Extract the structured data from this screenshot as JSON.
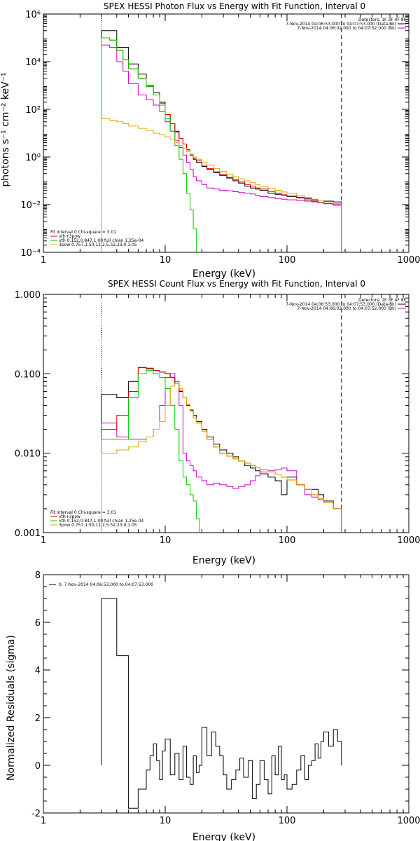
{
  "chart_data": [
    {
      "type": "line",
      "title": "SPEX HESSI Photon Flux vs Energy with Fit Function, Interval 0",
      "xlabel": "Energy (keV)",
      "ylabel": "photons s⁻¹ cm⁻² keV⁻¹",
      "xscale": "log",
      "yscale": "log",
      "xlim": [
        1,
        1000
      ],
      "ylim": [
        0.0001,
        1000000
      ],
      "x_ticks": [
        "1",
        "10",
        "100",
        "1000"
      ],
      "y_ticks": [
        "10⁻⁴",
        "10⁻²",
        "10⁰",
        "10²",
        "10⁴",
        "10⁶"
      ],
      "fit_range_keV": [
        3,
        280
      ],
      "legend_top": {
        "header": "Detectors: 1F 3F 4F 8F",
        "entries": [
          {
            "label": "7-Nov-2014 04:06:53.000 to 04:07:53.000 (Data-Bk)",
            "color": "#000000"
          },
          {
            "label": "7-Nov-2014 04:06:02.000 to 04:07:52.000 (Bk)",
            "color": "#cc00cc"
          }
        ]
      },
      "legend_bottom": {
        "header": "Fit Interval 0   Chi-square = 3.01",
        "entries": [
          {
            "label": "vth+3pow",
            "color": "#dd0000"
          },
          {
            "label": "vth 0.152,0.847,1.00  full chian 1.25e-04",
            "color": "#00cc00"
          },
          {
            "label": "3pow 0.757,1.50,11.2,5.52,23.0,1.05",
            "color": "#ddaa00"
          }
        ]
      },
      "series": [
        {
          "name": "7-Nov-2014 04:06:53.000 to 04:07:53.000 (Data-Bk)",
          "color": "#000000",
          "x": [
            3,
            3.5,
            4,
            4.5,
            5,
            6,
            7,
            8,
            9,
            10,
            11,
            12,
            13,
            14,
            15,
            16,
            17,
            18,
            20,
            22,
            25,
            28,
            32,
            36,
            40,
            45,
            50,
            55,
            60,
            70,
            80,
            90,
            100,
            120,
            140,
            160,
            180,
            200,
            240,
            280
          ],
          "y": [
            200000,
            200000,
            40000,
            40000,
            8000,
            3000,
            1000,
            500,
            200,
            60,
            25,
            12,
            6,
            3.5,
            2,
            1.2,
            0.8,
            0.6,
            0.4,
            0.3,
            0.22,
            0.17,
            0.13,
            0.1,
            0.08,
            0.06,
            0.05,
            0.045,
            0.04,
            0.03,
            0.027,
            0.025,
            0.022,
            0.02,
            0.018,
            0.016,
            0.015,
            0.014,
            0.013,
            0.012
          ]
        },
        {
          "name": "7-Nov-2014 04:06:02.000 to 04:07:52.000 (Bk)",
          "color": "#cc00cc",
          "x": [
            3,
            3.5,
            4,
            4.5,
            5,
            6,
            7,
            8,
            9,
            10,
            11,
            12,
            13,
            14,
            15,
            16,
            17,
            18,
            20,
            22,
            25,
            28,
            32,
            36,
            40,
            45,
            50,
            55,
            60,
            70,
            80,
            90,
            100,
            120,
            140,
            160,
            180,
            200,
            240,
            280
          ],
          "y": [
            50000,
            40000,
            10000,
            4000,
            1200,
            400,
            250,
            150,
            80,
            30,
            12,
            5,
            2.5,
            1.2,
            0.6,
            0.3,
            0.15,
            0.1,
            0.07,
            0.05,
            0.045,
            0.04,
            0.038,
            0.035,
            0.032,
            0.03,
            0.028,
            0.025,
            0.022,
            0.02,
            0.018,
            0.017,
            0.016,
            0.015,
            0.014,
            0.013,
            0.012,
            0.011,
            0.01,
            0.009
          ]
        },
        {
          "name": "vth+3pow",
          "color": "#dd0000",
          "x": [
            3,
            3.5,
            4,
            4.5,
            5,
            6,
            7,
            8,
            9,
            10,
            11,
            12,
            13,
            14,
            15,
            16,
            17,
            18,
            20,
            22,
            25,
            28,
            32,
            36,
            40,
            45,
            50,
            55,
            60,
            70,
            80,
            90,
            100,
            120,
            140,
            160,
            180,
            200,
            240,
            280
          ],
          "y": [
            100000,
            80000,
            30000,
            12000,
            5000,
            2000,
            900,
            400,
            180,
            60,
            25,
            11,
            6,
            3.5,
            2,
            1.3,
            0.9,
            0.7,
            0.45,
            0.33,
            0.24,
            0.18,
            0.14,
            0.11,
            0.09,
            0.07,
            0.06,
            0.05,
            0.045,
            0.036,
            0.03,
            0.026,
            0.023,
            0.019,
            0.016,
            0.014,
            0.012,
            0.011,
            0.0095,
            0.0085
          ]
        },
        {
          "name": "vth 0.152,0.847,1.00  full chian 1.25e-04",
          "color": "#00cc00",
          "x": [
            3,
            3.5,
            4,
            4.5,
            5,
            6,
            7,
            8,
            9,
            10,
            11,
            12,
            13,
            14,
            15,
            16,
            17,
            18
          ],
          "y": [
            100000,
            80000,
            30000,
            12000,
            5000,
            2000,
            900,
            400,
            150,
            40,
            12,
            3,
            0.8,
            0.2,
            0.03,
            0.006,
            0.001,
            0.0001
          ]
        },
        {
          "name": "3pow 0.757,1.50,11.2,5.52,23.0,1.05",
          "color": "#ddaa00",
          "x": [
            3,
            3.5,
            4,
            4.5,
            5,
            6,
            7,
            8,
            9,
            10,
            11,
            12,
            13,
            14,
            15,
            16,
            17,
            18,
            20,
            22,
            25,
            28,
            32,
            36,
            40,
            45,
            50,
            55,
            60,
            70,
            80,
            90,
            100,
            120,
            140,
            160,
            180,
            200,
            240,
            280
          ],
          "y": [
            40,
            35,
            30,
            25,
            20,
            16,
            13,
            10,
            8.5,
            7,
            5.5,
            4,
            3,
            2.3,
            1.7,
            1.3,
            1,
            0.8,
            0.6,
            0.45,
            0.33,
            0.25,
            0.19,
            0.15,
            0.12,
            0.1,
            0.085,
            0.07,
            0.06,
            0.048,
            0.04,
            0.034,
            0.03,
            0.024,
            0.02,
            0.017,
            0.015,
            0.013,
            0.011,
            0.01
          ]
        }
      ]
    },
    {
      "type": "line",
      "title": "SPEX HESSI Count Flux vs Energy with Fit Function, Interval 0",
      "xlabel": "Energy (keV)",
      "ylabel": "",
      "xscale": "log",
      "yscale": "log",
      "xlim": [
        1,
        1000
      ],
      "ylim": [
        0.001,
        1.0
      ],
      "x_ticks": [
        "1",
        "10",
        "100",
        "1000"
      ],
      "y_ticks": [
        "0.001",
        "0.010",
        "0.100",
        "1.000"
      ],
      "fit_range_keV": [
        3,
        280
      ],
      "legend_top": {
        "header": "Detectors: 1F 3F 4F 8F",
        "entries": [
          {
            "label": "7-Nov-2014 04:06:53.000 to 04:07:53.000 (Data-Bk)",
            "color": "#000000"
          },
          {
            "label": "7-Nov-2014 04:06:02.000 to 04:07:52.000 (Bk)",
            "color": "#cc00cc"
          }
        ]
      },
      "legend_bottom": {
        "header": "Fit Interval 0   Chi-square = 3.01",
        "entries": [
          {
            "label": "vth+3pow",
            "color": "#dd0000"
          },
          {
            "label": "vth 0.152,0.847,1.00  full chian 1.25e-04",
            "color": "#00cc00"
          },
          {
            "label": "3pow 0.757,1.50,11.2,5.52,23.0,1.05",
            "color": "#ddaa00"
          }
        ]
      },
      "series": [
        {
          "name": "7-Nov-2014 04:06:53.000 to 04:07:53.000 (Data-Bk)",
          "color": "#000000",
          "x": [
            3,
            4,
            5,
            6,
            7,
            8,
            9,
            10,
            11,
            12,
            13,
            14,
            15,
            16,
            17,
            18,
            20,
            22,
            25,
            28,
            32,
            36,
            40,
            45,
            50,
            55,
            60,
            70,
            80,
            90,
            100,
            120,
            140,
            160,
            180,
            200,
            240,
            280
          ],
          "y": [
            0.055,
            0.05,
            0.08,
            0.12,
            0.115,
            0.11,
            0.105,
            0.1,
            0.09,
            0.075,
            0.06,
            0.05,
            0.04,
            0.035,
            0.03,
            0.025,
            0.02,
            0.016,
            0.013,
            0.011,
            0.01,
            0.009,
            0.008,
            0.007,
            0.0065,
            0.006,
            0.0055,
            0.005,
            0.0045,
            0.003,
            0.005,
            0.004,
            0.0035,
            0.0035,
            0.003,
            0.0025,
            0.002,
            0.0015
          ]
        },
        {
          "name": "7-Nov-2014 04:06:02.000 to 04:07:52.000 (Bk)",
          "color": "#cc00cc",
          "x": [
            3,
            4,
            5,
            6,
            7,
            8,
            9,
            10,
            11,
            12,
            13,
            14,
            15,
            16,
            17,
            18,
            20,
            22,
            25,
            28,
            32,
            36,
            40,
            45,
            50,
            55,
            60,
            70,
            80,
            90,
            100,
            120,
            140,
            160,
            180,
            200,
            240,
            280
          ],
          "y": [
            0.024,
            0.016,
            0.015,
            0.015,
            0.016,
            0.02,
            0.04,
            0.09,
            0.1,
            0.08,
            0.04,
            0.01,
            0.008,
            0.007,
            0.006,
            0.005,
            0.0045,
            0.004,
            0.0042,
            0.004,
            0.0038,
            0.0036,
            0.0038,
            0.004,
            0.0045,
            0.0052,
            0.0058,
            0.006,
            0.0062,
            0.0065,
            0.006,
            0.004,
            0.003,
            0.0028,
            0.0026,
            0.0024,
            0.002,
            0.0015
          ]
        },
        {
          "name": "vth+3pow",
          "color": "#dd0000",
          "x": [
            3,
            4,
            5,
            6,
            7,
            8,
            9,
            10,
            11,
            12,
            13,
            14,
            15,
            16,
            17,
            18,
            20,
            22,
            25,
            28,
            32,
            36,
            40,
            45,
            50,
            55,
            60,
            70,
            80,
            90,
            100,
            120,
            140,
            160,
            180,
            200,
            240,
            280
          ],
          "y": [
            0.02,
            0.03,
            0.06,
            0.12,
            0.118,
            0.11,
            0.105,
            0.1,
            0.09,
            0.075,
            0.062,
            0.05,
            0.041,
            0.034,
            0.028,
            0.024,
            0.019,
            0.015,
            0.012,
            0.01,
            0.0092,
            0.0085,
            0.008,
            0.0075,
            0.007,
            0.0066,
            0.0062,
            0.0058,
            0.0054,
            0.005,
            0.0046,
            0.004,
            0.0035,
            0.003,
            0.0027,
            0.0024,
            0.002,
            0.0016
          ]
        },
        {
          "name": "vth 0.152,0.847,1.00  full chian 1.25e-04",
          "color": "#00cc00",
          "x": [
            3,
            4,
            5,
            6,
            7,
            8,
            9,
            10,
            11,
            12,
            13,
            14,
            15,
            16,
            17,
            18,
            19
          ],
          "y": [
            0.015,
            0.015,
            0.05,
            0.1,
            0.11,
            0.1,
            0.09,
            0.065,
            0.04,
            0.02,
            0.008,
            0.005,
            0.004,
            0.003,
            0.0025,
            0.0015,
            0.001
          ]
        },
        {
          "name": "3pow 0.757,1.50,11.2,5.52,23.0,1.05",
          "color": "#ddaa00",
          "x": [
            3,
            4,
            5,
            6,
            7,
            8,
            9,
            10,
            11,
            12,
            13,
            14,
            15,
            16,
            17,
            18,
            20,
            22,
            25,
            28,
            32,
            36,
            40,
            45,
            50,
            55,
            60,
            70,
            80,
            90,
            100,
            120,
            140,
            160,
            180,
            200,
            240,
            280
          ],
          "y": [
            0.01,
            0.011,
            0.012,
            0.014,
            0.016,
            0.02,
            0.025,
            0.04,
            0.07,
            0.075,
            0.065,
            0.05,
            0.041,
            0.034,
            0.028,
            0.024,
            0.019,
            0.015,
            0.012,
            0.01,
            0.0092,
            0.0085,
            0.008,
            0.0075,
            0.007,
            0.0066,
            0.0062,
            0.0058,
            0.0054,
            0.005,
            0.0046,
            0.004,
            0.0035,
            0.003,
            0.0027,
            0.0024,
            0.002,
            0.0016
          ]
        }
      ]
    },
    {
      "type": "line",
      "title": "",
      "xlabel": "Energy (keV)",
      "ylabel": "Normalized Residuals (sigma)",
      "xscale": "log",
      "yscale": "linear",
      "xlim": [
        1,
        1000
      ],
      "ylim": [
        -2,
        8
      ],
      "x_ticks": [
        "1",
        "10",
        "100",
        "1000"
      ],
      "y_ticks": [
        "-2",
        "0",
        "2",
        "4",
        "6",
        "8"
      ],
      "legend": {
        "entries": [
          {
            "label": "0.  7-Nov-2014 04:06:53.000 to 04:07:53.000",
            "color": "#000000"
          }
        ]
      },
      "series": [
        {
          "name": "0.  7-Nov-2014 04:06:53.000 to 04:07:53.000",
          "color": "#000000",
          "x": [
            3,
            4,
            5,
            6,
            7,
            7.5,
            8,
            8.5,
            9,
            9.5,
            10,
            11,
            12,
            13,
            14,
            15,
            16,
            17,
            18,
            19,
            20,
            22,
            24,
            26,
            28,
            30,
            32,
            35,
            38,
            41,
            44,
            48,
            52,
            56,
            60,
            65,
            70,
            75,
            80,
            85,
            90,
            95,
            100,
            110,
            120,
            130,
            140,
            150,
            160,
            170,
            180,
            190,
            200,
            220,
            240,
            260,
            280
          ],
          "y": [
            7,
            4.6,
            -1.8,
            -1,
            -0.2,
            0.4,
            0.9,
            0.2,
            -0.6,
            0.6,
            1.1,
            -0.4,
            0.5,
            -0.6,
            0.8,
            -0.5,
            -0.8,
            0.4,
            -0.3,
            0,
            1.6,
            0.4,
            1.4,
            0.8,
            0.4,
            -0.4,
            -1,
            -0.6,
            -0.2,
            0.3,
            -0.5,
            0.2,
            -1.4,
            -0.8,
            0.2,
            -0.6,
            -1.2,
            0.4,
            -0.4,
            0.8,
            -0.6,
            -0.4,
            -1,
            -0.8,
            -0.2,
            0.4,
            -0.6,
            0,
            0.2,
            0.9,
            0.3,
            1.0,
            1.4,
            0.8,
            1.5,
            1.0,
            0
          ]
        }
      ]
    }
  ]
}
